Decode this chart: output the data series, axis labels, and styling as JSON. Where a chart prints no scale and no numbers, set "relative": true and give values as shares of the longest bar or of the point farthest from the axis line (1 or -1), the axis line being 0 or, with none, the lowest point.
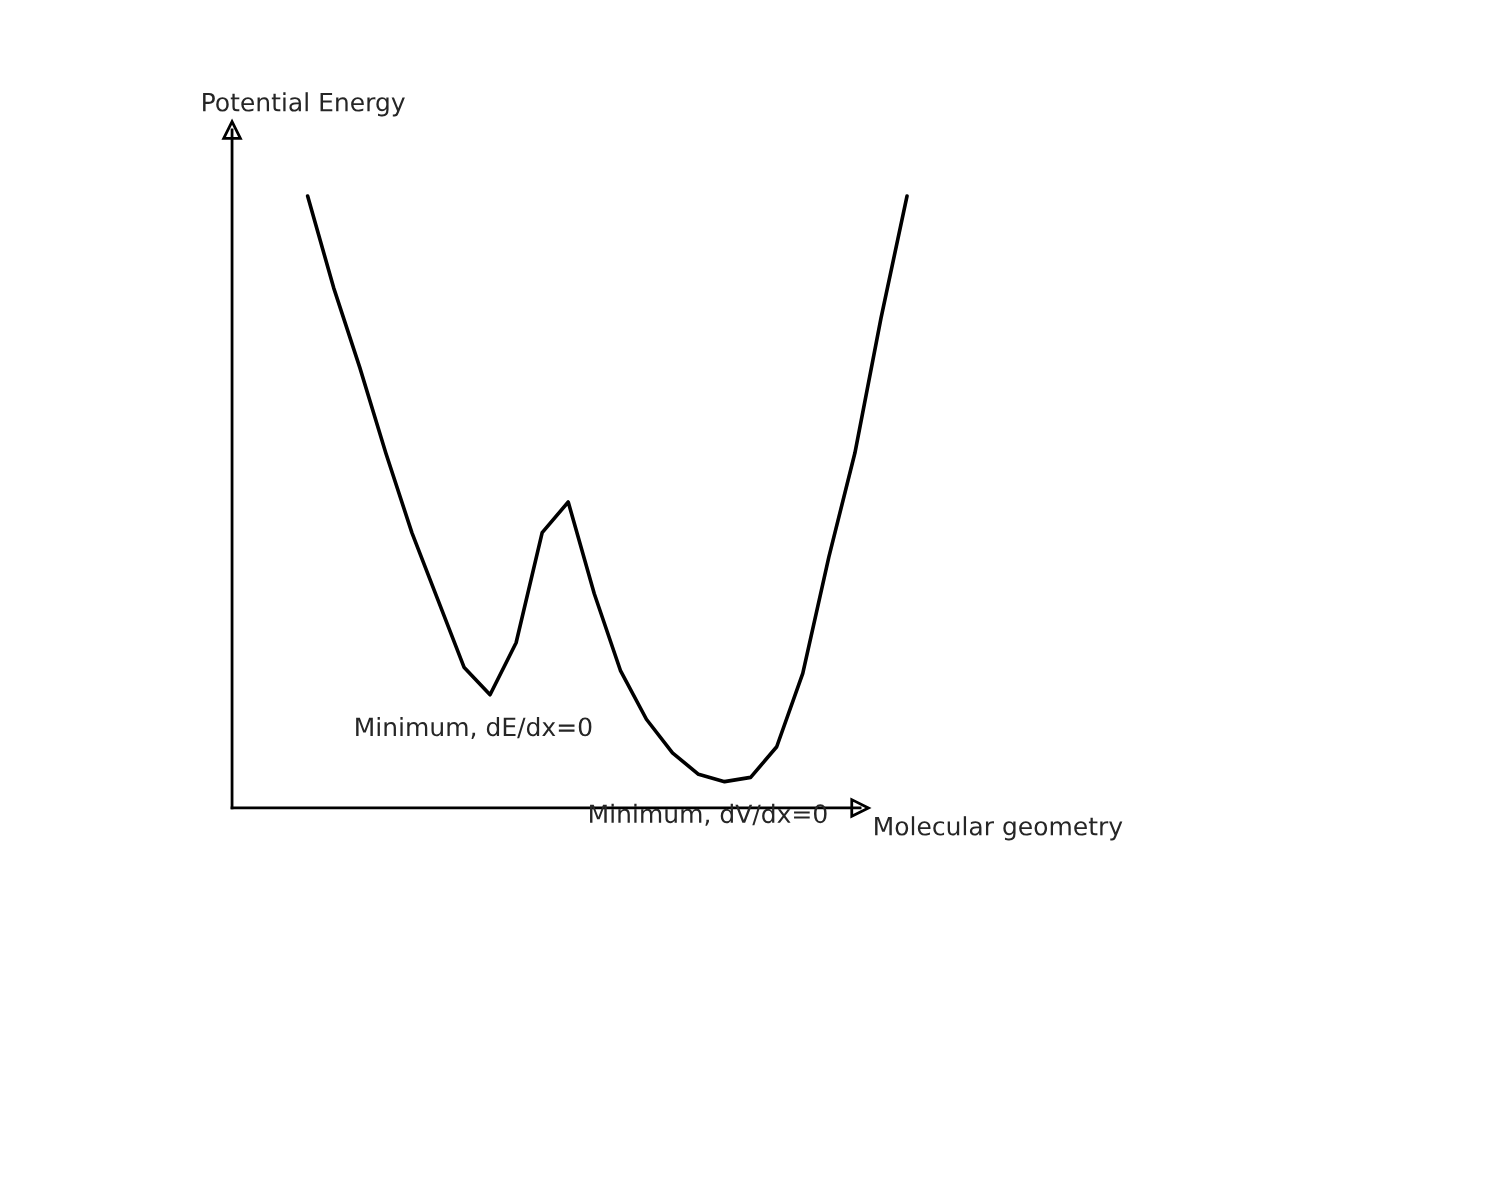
{
  "chart_data": {
    "type": "line",
    "relative": true,
    "xlabel": "Molecular geometry",
    "ylabel": "Potential Energy",
    "categories": [
      null,
      null,
      null,
      null,
      null,
      null,
      null,
      null,
      null,
      null,
      null,
      null,
      null,
      null,
      null,
      null,
      null,
      null,
      null,
      null,
      null,
      null,
      null,
      null
    ],
    "series": [
      {
        "color": "#000000",
        "values": [
          1.0,
          0.85,
          0.72,
          0.58,
          0.45,
          0.34,
          0.23,
          0.185,
          0.27,
          0.45,
          0.5,
          0.35,
          0.225,
          0.145,
          0.09,
          0.055,
          0.043,
          0.05,
          0.1,
          0.22,
          0.41,
          0.58,
          0.8,
          1.0
        ]
      }
    ],
    "annotations": [
      "Minimum, dE/dx=0",
      "Minimum, dV/dx=0"
    ],
    "marker": "none",
    "line_style": "solid"
  }
}
